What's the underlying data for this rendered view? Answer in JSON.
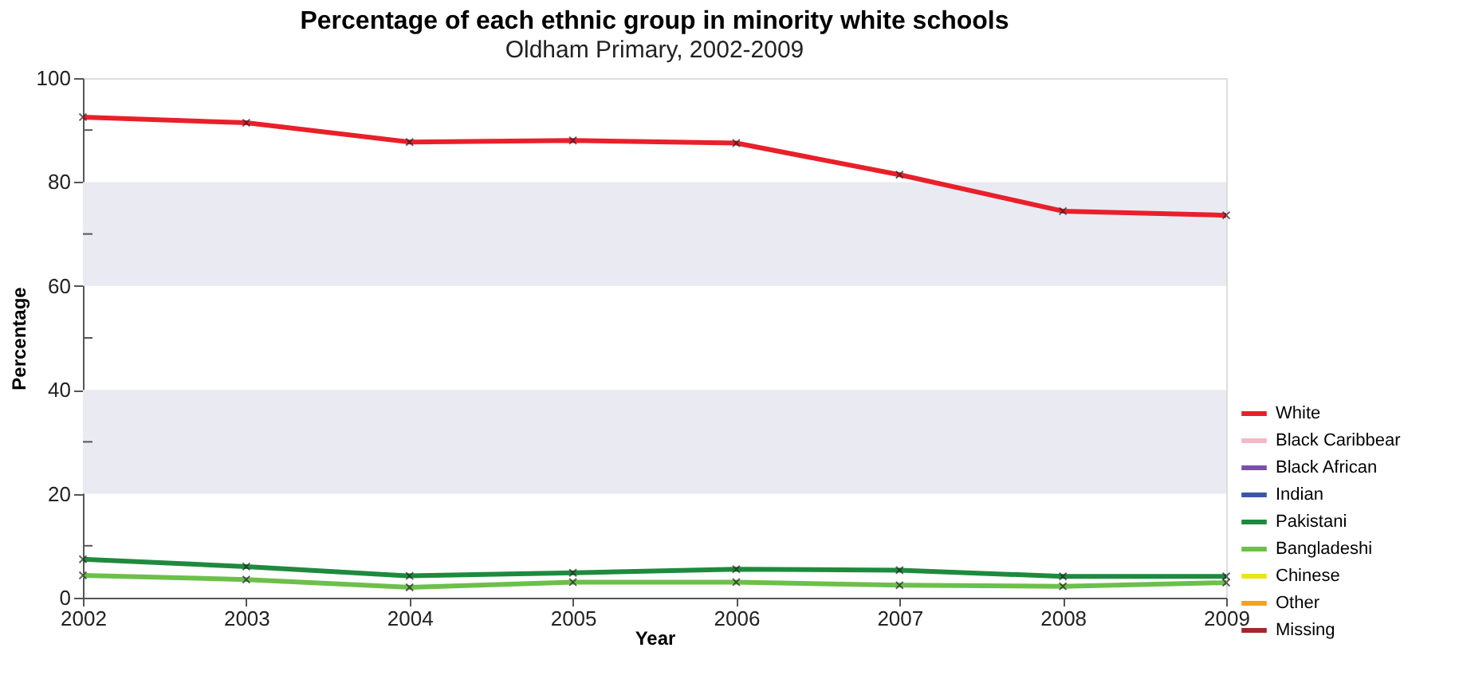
{
  "chart_data": {
    "type": "line",
    "title": "Percentage of each ethnic group in minority white schools",
    "subtitle": "Oldham Primary, 2002-2009",
    "xlabel": "Year",
    "ylabel": "Percentage",
    "x": [
      2002,
      2003,
      2004,
      2005,
      2006,
      2007,
      2008,
      2009
    ],
    "xlim": [
      2002,
      2009
    ],
    "xticks": [
      2002,
      2003,
      2004,
      2005,
      2006,
      2007,
      2008,
      2009
    ],
    "ylim": [
      0,
      100
    ],
    "yticks": [
      0,
      {
        "value": 10,
        "label": null
      },
      20,
      {
        "value": 30,
        "label": null
      },
      40,
      {
        "value": 50,
        "label": null
      },
      60,
      {
        "value": 70,
        "label": null
      },
      80,
      {
        "value": 90,
        "label": null
      },
      100
    ],
    "series": [
      {
        "name": "White",
        "color": "#e8202a",
        "values": [
          92.5,
          91.4,
          87.7,
          88.0,
          87.5,
          81.4,
          74.4,
          73.6
        ]
      },
      {
        "name": "Black Caribbear",
        "color": "#f4b8c8",
        "values": [
          null,
          null,
          null,
          null,
          null,
          null,
          null,
          null
        ]
      },
      {
        "name": "Black African",
        "color": "#7b4fa6",
        "values": [
          null,
          null,
          null,
          null,
          null,
          null,
          null,
          null
        ]
      },
      {
        "name": "Indian",
        "color": "#3a57a5",
        "values": [
          null,
          null,
          null,
          null,
          null,
          null,
          null,
          null
        ]
      },
      {
        "name": "Pakistani",
        "color": "#1e8a3e",
        "values": [
          7.4,
          6.0,
          4.2,
          4.8,
          5.5,
          5.3,
          4.1,
          4.1
        ]
      },
      {
        "name": "Bangladeshi",
        "color": "#6cc04a",
        "values": [
          4.3,
          3.5,
          2.0,
          3.0,
          3.0,
          2.4,
          2.2,
          2.9
        ]
      },
      {
        "name": "Chinese",
        "color": "#e6e619",
        "values": [
          null,
          null,
          null,
          null,
          null,
          null,
          null,
          null
        ]
      },
      {
        "name": "Other",
        "color": "#f7a11a",
        "values": [
          null,
          null,
          null,
          null,
          null,
          null,
          null,
          null
        ]
      },
      {
        "name": "Missing",
        "color": "#a3262a",
        "values": [
          null,
          null,
          null,
          null,
          null,
          null,
          null,
          null
        ]
      }
    ],
    "bands": [
      {
        "axis": "y",
        "from": 20,
        "to": 40,
        "color": "#eaeaf2"
      },
      {
        "axis": "y",
        "from": 60,
        "to": 80,
        "color": "#eaeaf2"
      }
    ],
    "grid": false,
    "legend": "right",
    "marker": "cross",
    "line_style": "solid"
  }
}
